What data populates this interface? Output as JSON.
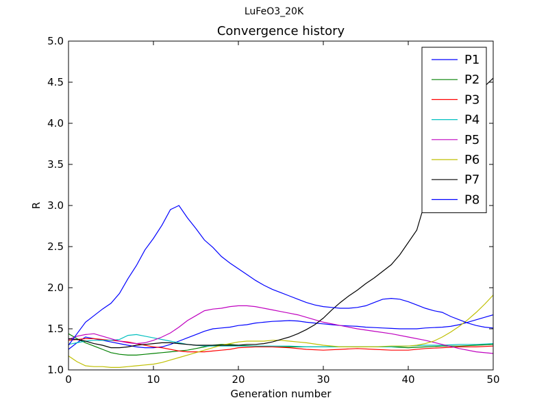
{
  "figure": {
    "suptitle": "LuFeO3_20K",
    "title": "Convergence history"
  },
  "chart_data": {
    "type": "line",
    "title": "Convergence history",
    "suptitle": "LuFeO3_20K",
    "xlabel": "Generation number",
    "ylabel": "R",
    "xlim": [
      0,
      50
    ],
    "ylim": [
      1.0,
      5.0
    ],
    "xticks": [
      "0",
      "10",
      "20",
      "30",
      "40",
      "50"
    ],
    "yticks": [
      "1.0",
      "1.5",
      "2.0",
      "2.5",
      "3.0",
      "3.5",
      "4.0",
      "4.5",
      "5.0"
    ],
    "grid": false,
    "legend_position": "top-right",
    "series": [
      {
        "name": "P1",
        "color": "#0000ff",
        "x": [
          0,
          1,
          2,
          3,
          4,
          5,
          6,
          7,
          8,
          9,
          10,
          11,
          12,
          13,
          14,
          15,
          16,
          17,
          18,
          19,
          20,
          21,
          22,
          23,
          24,
          25,
          26,
          27,
          28,
          29,
          30,
          31,
          32,
          33,
          34,
          35,
          36,
          37,
          38,
          39,
          40,
          41,
          42,
          43,
          44,
          45,
          46,
          47,
          48,
          49,
          50
        ],
        "y": [
          1.25,
          1.33,
          1.4,
          1.38,
          1.36,
          1.34,
          1.32,
          1.3,
          1.28,
          1.27,
          1.27,
          1.28,
          1.31,
          1.35,
          1.39,
          1.43,
          1.47,
          1.5,
          1.51,
          1.52,
          1.54,
          1.55,
          1.57,
          1.58,
          1.59,
          1.595,
          1.6,
          1.595,
          1.58,
          1.57,
          1.56,
          1.55,
          1.54,
          1.535,
          1.53,
          1.52,
          1.515,
          1.51,
          1.505,
          1.5,
          1.5,
          1.5,
          1.51,
          1.515,
          1.52,
          1.53,
          1.55,
          1.58,
          1.61,
          1.64,
          1.67
        ]
      },
      {
        "name": "P2",
        "color": "#008000",
        "x": [
          0,
          1,
          2,
          3,
          4,
          5,
          6,
          7,
          8,
          9,
          10,
          11,
          12,
          13,
          14,
          15,
          16,
          17,
          18,
          19,
          20,
          22,
          24,
          26,
          28,
          30,
          32,
          34,
          36,
          38,
          40,
          42,
          44,
          46,
          48,
          50
        ],
        "y": [
          1.44,
          1.38,
          1.33,
          1.29,
          1.25,
          1.21,
          1.19,
          1.18,
          1.18,
          1.19,
          1.2,
          1.21,
          1.22,
          1.23,
          1.24,
          1.26,
          1.28,
          1.3,
          1.31,
          1.31,
          1.3,
          1.29,
          1.28,
          1.28,
          1.28,
          1.28,
          1.28,
          1.28,
          1.28,
          1.28,
          1.27,
          1.28,
          1.29,
          1.29,
          1.3,
          1.31
        ]
      },
      {
        "name": "P3",
        "color": "#ff0000",
        "x": [
          0,
          1,
          2,
          3,
          4,
          5,
          6,
          7,
          8,
          9,
          10,
          11,
          12,
          13,
          14,
          15,
          16,
          17,
          18,
          19,
          20,
          22,
          24,
          26,
          28,
          30,
          32,
          34,
          36,
          38,
          40,
          42,
          44,
          46,
          48,
          50
        ],
        "y": [
          1.36,
          1.37,
          1.38,
          1.38,
          1.37,
          1.36,
          1.35,
          1.34,
          1.32,
          1.3,
          1.28,
          1.27,
          1.25,
          1.23,
          1.22,
          1.22,
          1.22,
          1.23,
          1.24,
          1.25,
          1.27,
          1.28,
          1.28,
          1.27,
          1.25,
          1.24,
          1.25,
          1.26,
          1.25,
          1.24,
          1.24,
          1.26,
          1.27,
          1.28,
          1.28,
          1.29
        ]
      },
      {
        "name": "P4",
        "color": "#00bfbf",
        "x": [
          0,
          1,
          2,
          3,
          4,
          5,
          6,
          7,
          8,
          9,
          10,
          11,
          12,
          13,
          14,
          15,
          16,
          18,
          20,
          22,
          24,
          26,
          28,
          30,
          32,
          34,
          36,
          38,
          40,
          42,
          44,
          46,
          48,
          50
        ],
        "y": [
          1.31,
          1.33,
          1.35,
          1.36,
          1.36,
          1.36,
          1.37,
          1.42,
          1.43,
          1.41,
          1.39,
          1.37,
          1.35,
          1.33,
          1.31,
          1.3,
          1.29,
          1.29,
          1.29,
          1.29,
          1.29,
          1.29,
          1.28,
          1.28,
          1.28,
          1.28,
          1.28,
          1.28,
          1.29,
          1.3,
          1.3,
          1.31,
          1.31,
          1.32
        ]
      },
      {
        "name": "P5",
        "color": "#bf00bf",
        "x": [
          0,
          1,
          2,
          3,
          4,
          5,
          6,
          7,
          8,
          9,
          10,
          11,
          12,
          13,
          14,
          15,
          16,
          17,
          18,
          19,
          20,
          21,
          22,
          23,
          24,
          25,
          26,
          27,
          28,
          29,
          30,
          32,
          34,
          36,
          38,
          40,
          42,
          44,
          46,
          48,
          50
        ],
        "y": [
          1.37,
          1.41,
          1.43,
          1.44,
          1.41,
          1.38,
          1.35,
          1.33,
          1.32,
          1.33,
          1.36,
          1.4,
          1.45,
          1.52,
          1.6,
          1.66,
          1.72,
          1.74,
          1.75,
          1.77,
          1.78,
          1.78,
          1.77,
          1.75,
          1.73,
          1.71,
          1.69,
          1.67,
          1.64,
          1.61,
          1.58,
          1.54,
          1.5,
          1.47,
          1.44,
          1.4,
          1.36,
          1.31,
          1.26,
          1.22,
          1.2
        ]
      },
      {
        "name": "P6",
        "color": "#bfbf00",
        "x": [
          0,
          1,
          2,
          3,
          4,
          5,
          6,
          7,
          8,
          9,
          10,
          11,
          12,
          13,
          14,
          15,
          16,
          17,
          18,
          19,
          20,
          21,
          22,
          23,
          24,
          25,
          26,
          27,
          28,
          30,
          32,
          34,
          36,
          38,
          40,
          41,
          42,
          43,
          44,
          45,
          46,
          47,
          48,
          49,
          50
        ],
        "y": [
          1.17,
          1.1,
          1.05,
          1.04,
          1.04,
          1.03,
          1.03,
          1.04,
          1.05,
          1.06,
          1.07,
          1.09,
          1.12,
          1.15,
          1.18,
          1.21,
          1.24,
          1.27,
          1.3,
          1.32,
          1.34,
          1.35,
          1.35,
          1.35,
          1.36,
          1.36,
          1.35,
          1.34,
          1.33,
          1.3,
          1.28,
          1.28,
          1.28,
          1.29,
          1.29,
          1.3,
          1.32,
          1.35,
          1.4,
          1.46,
          1.53,
          1.61,
          1.7,
          1.8,
          1.91
        ]
      },
      {
        "name": "P7",
        "color": "#000000",
        "x": [
          0,
          1,
          2,
          3,
          4,
          5,
          6,
          7,
          8,
          9,
          10,
          11,
          12,
          13,
          14,
          15,
          16,
          17,
          18,
          19,
          20,
          21,
          22,
          23,
          24,
          25,
          26,
          27,
          28,
          29,
          30,
          31,
          32,
          33,
          34,
          35,
          36,
          37,
          38,
          39,
          40,
          41,
          42,
          43,
          44,
          45,
          46,
          47,
          48,
          49,
          50
        ],
        "y": [
          1.38,
          1.37,
          1.35,
          1.32,
          1.3,
          1.27,
          1.27,
          1.28,
          1.3,
          1.31,
          1.32,
          1.33,
          1.33,
          1.32,
          1.31,
          1.3,
          1.3,
          1.3,
          1.3,
          1.3,
          1.3,
          1.31,
          1.31,
          1.32,
          1.34,
          1.37,
          1.4,
          1.44,
          1.49,
          1.55,
          1.63,
          1.73,
          1.82,
          1.9,
          1.97,
          2.05,
          2.12,
          2.2,
          2.28,
          2.4,
          2.55,
          2.7,
          3.05,
          3.2,
          3.35,
          3.55,
          3.75,
          3.95,
          4.2,
          4.45,
          4.55
        ]
      },
      {
        "name": "P8",
        "color": "#0000ff",
        "x": [
          0,
          1,
          2,
          3,
          4,
          5,
          6,
          7,
          8,
          9,
          10,
          11,
          12,
          13,
          14,
          15,
          16,
          17,
          18,
          19,
          20,
          21,
          22,
          23,
          24,
          25,
          26,
          27,
          28,
          29,
          30,
          31,
          32,
          33,
          34,
          35,
          36,
          37,
          38,
          39,
          40,
          41,
          42,
          43,
          44,
          45,
          46,
          47,
          48,
          49,
          50
        ],
        "y": [
          1.3,
          1.44,
          1.58,
          1.66,
          1.74,
          1.81,
          1.93,
          2.11,
          2.27,
          2.46,
          2.6,
          2.76,
          2.95,
          3.0,
          2.85,
          2.72,
          2.58,
          2.49,
          2.38,
          2.3,
          2.23,
          2.16,
          2.09,
          2.03,
          1.98,
          1.94,
          1.9,
          1.86,
          1.82,
          1.79,
          1.77,
          1.76,
          1.75,
          1.75,
          1.76,
          1.78,
          1.82,
          1.86,
          1.87,
          1.86,
          1.83,
          1.79,
          1.75,
          1.72,
          1.7,
          1.65,
          1.61,
          1.57,
          1.54,
          1.52,
          1.51
        ]
      }
    ]
  }
}
